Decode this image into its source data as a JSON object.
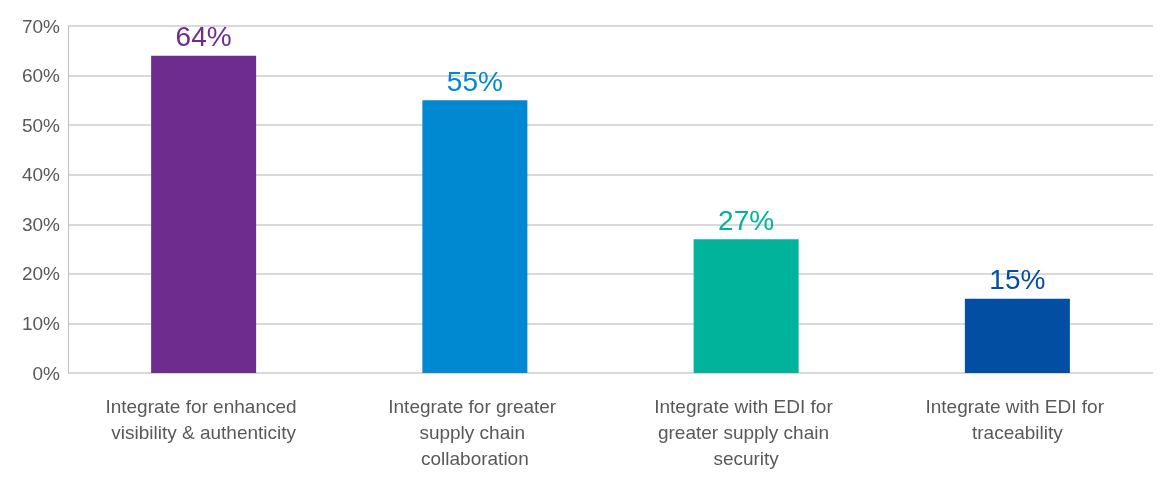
{
  "chart_data": {
    "type": "bar",
    "categories": [
      "Integrate for enhanced visibility & authenticity",
      "Integrate for greater supply chain collaboration",
      "Integrate with EDI for greater supply chain security",
      "Integrate with EDI for traceability"
    ],
    "values": [
      64,
      55,
      27,
      15
    ],
    "colors": [
      "#6f2c8f",
      "#0088d1",
      "#00b39a",
      "#014ea2"
    ],
    "value_labels": [
      "64%",
      "55%",
      "27%",
      "15%"
    ],
    "ylim": [
      0,
      70
    ],
    "yticks": [
      {
        "value": 0,
        "label": "0%"
      },
      {
        "value": 10,
        "label": "10%"
      },
      {
        "value": 20,
        "label": "20%"
      },
      {
        "value": 30,
        "label": "30%"
      },
      {
        "value": 40,
        "label": "40%"
      },
      {
        "value": 50,
        "label": "50%"
      },
      {
        "value": 60,
        "label": "60%"
      },
      {
        "value": 70,
        "label": "70%"
      }
    ],
    "grid": "y"
  }
}
